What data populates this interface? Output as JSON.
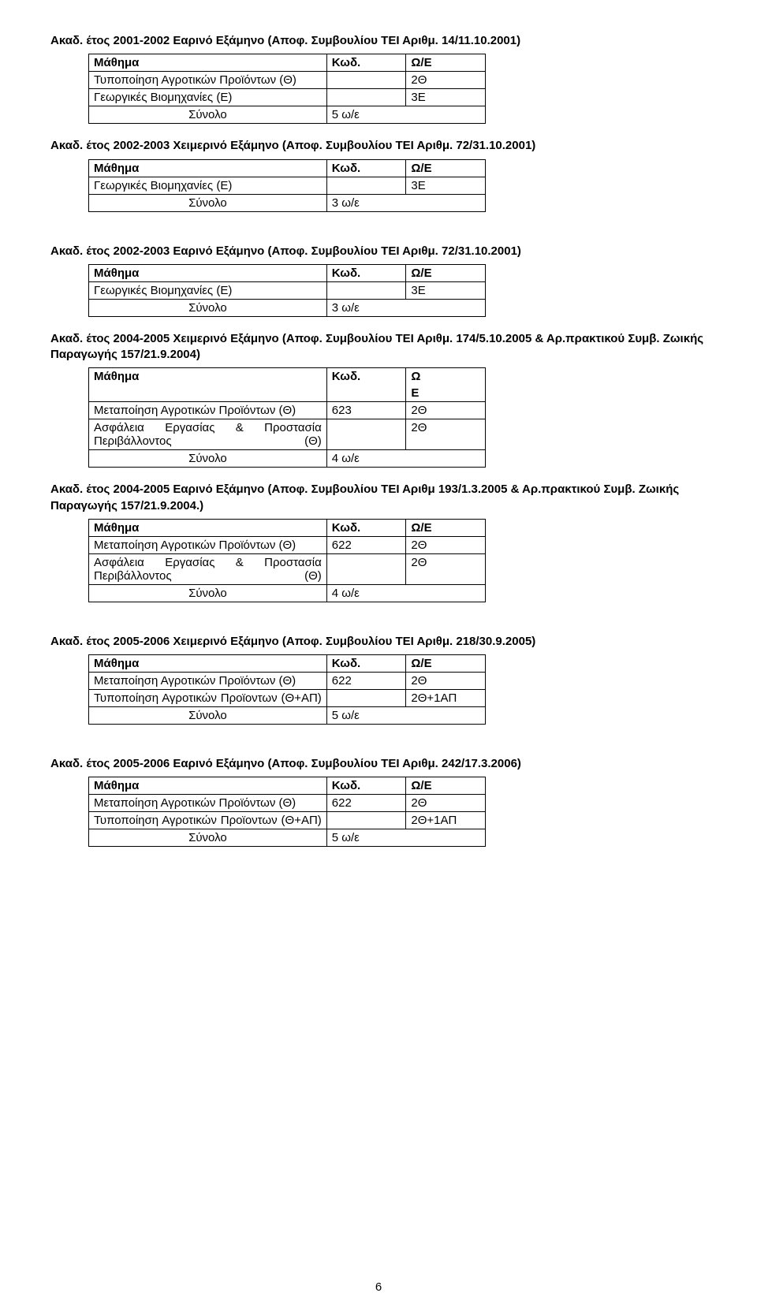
{
  "labels": {
    "col_course": "Μάθημα",
    "col_code": "Κωδ.",
    "col_hours": "Ω/Ε",
    "col_hours_split1": "Ω",
    "col_hours_split2": "Ε",
    "sum": "Σύνολο"
  },
  "sections": [
    {
      "title": "Ακαδ. έτος 2001-2002 Εαρινό Εξάμηνο (Αποφ. Συμβουλίου ΤΕΙ Αριθμ. 14/11.10.2001)",
      "rows": [
        {
          "name": "Τυποποίηση Αγροτικών Προϊόντων (Θ)",
          "code": "",
          "hours": "2Θ"
        },
        {
          "name": "Γεωργικές Βιομηχανίες (Ε)",
          "code": "",
          "hours": "3Ε"
        }
      ],
      "sum": "5 ω/ε"
    },
    {
      "title": "Ακαδ. έτος 2002-2003 Χειμερινό Εξάμηνο (Αποφ. Συμβουλίου ΤΕΙ Αριθμ. 72/31.10.2001)",
      "rows": [
        {
          "name": "Γεωργικές Βιομηχανίες (Ε)",
          "code": "",
          "hours": "3Ε"
        }
      ],
      "sum": "3 ω/ε"
    },
    {
      "title": "Ακαδ. έτος 2002-2003 Εαρινό Εξάμηνο (Αποφ. Συμβουλίου ΤΕΙ Αριθμ. 72/31.10.2001)",
      "rows": [
        {
          "name": "Γεωργικές Βιομηχανίες (Ε)",
          "code": "",
          "hours": "3Ε"
        }
      ],
      "sum": "3 ω/ε"
    },
    {
      "title": "Ακαδ. έτος 2004-2005 Χειμερινό Εξάμηνο (Αποφ. Συμβουλίου ΤΕΙ Αριθμ. 174/5.10.2005 & Αρ.πρακτικού Συμβ. Ζωικής Παραγωγής 157/21.9.2004)",
      "split_hours_header": true,
      "rows": [
        {
          "name": "Μεταποίηση Αγροτικών Προϊόντων (Θ)",
          "code": "623",
          "hours": "2Θ"
        },
        {
          "name": "Ασφάλεια Εργασίας & Προστασία Περιβάλλοντος (Θ)",
          "justify": true,
          "code": "",
          "hours": "2Θ"
        }
      ],
      "sum": "4 ω/ε"
    },
    {
      "title": "Ακαδ. έτος 2004-2005 Εαρινό Εξάμηνο (Αποφ. Συμβουλίου ΤΕΙ Αριθμ 193/1.3.2005 & Αρ.πρακτικού Συμβ. Ζωικής Παραγωγής 157/21.9.2004.)",
      "rows": [
        {
          "name": "Μεταποίηση Αγροτικών Προϊόντων (Θ)",
          "code": "622",
          "hours": "2Θ"
        },
        {
          "name": "Ασφάλεια Εργασίας & Προστασία Περιβάλλοντος (Θ)",
          "justify": true,
          "code": "",
          "hours": "2Θ"
        }
      ],
      "sum": "4 ω/ε"
    },
    {
      "title": "Ακαδ. έτος 2005-2006 Χειμερινό Εξάμηνο (Αποφ. Συμβουλίου ΤΕΙ Αριθμ. 218/30.9.2005)",
      "rows": [
        {
          "name": "Μεταποίηση Αγροτικών Προϊόντων (Θ)",
          "code": "622",
          "hours": "2Θ"
        },
        {
          "name": "Τυποποίηση Αγροτικών Προϊοντων (Θ+ΑΠ)",
          "justify": true,
          "code": "",
          "hours": "2Θ+1ΑΠ"
        }
      ],
      "sum": "5 ω/ε"
    },
    {
      "title": "Ακαδ. έτος 2005-2006 Εαρινό Εξάμηνο (Αποφ. Συμβουλίου ΤΕΙ Αριθμ. 242/17.3.2006)",
      "rows": [
        {
          "name": "Μεταποίηση Αγροτικών Προϊόντων (Θ)",
          "code": "622",
          "hours": "2Θ"
        },
        {
          "name": "Τυποποίηση Αγροτικών Προϊοντων (Θ+ΑΠ)",
          "justify": true,
          "code": "",
          "hours": "2Θ+1ΑΠ"
        }
      ],
      "sum": "5 ω/ε"
    }
  ],
  "page_number": "6"
}
